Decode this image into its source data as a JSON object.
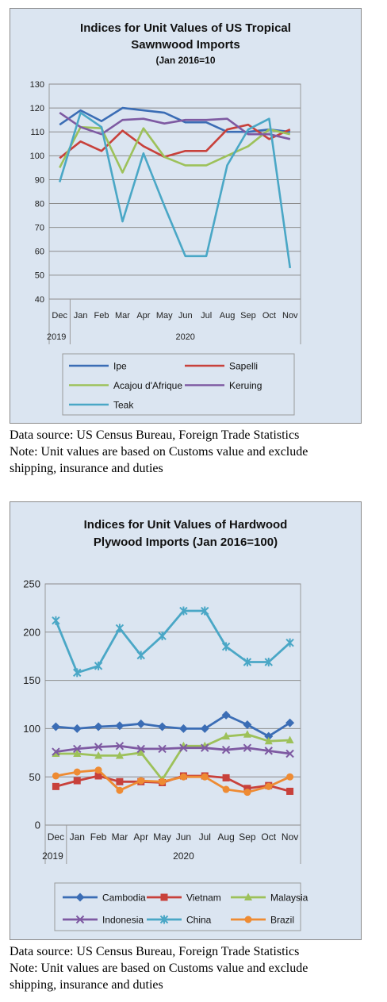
{
  "chart_data": [
    {
      "type": "line",
      "title": "Indices for Unit Values of US Tropical",
      "title_line2": "Sawnwood Imports",
      "subtitle": "(Jan 2016=10",
      "categories": [
        "Dec",
        "Jan",
        "Feb",
        "Mar",
        "Apr",
        "May",
        "Jun",
        "Jul",
        "Aug",
        "Sep",
        "Oct",
        "Nov"
      ],
      "year_labels": [
        "2019",
        "2020"
      ],
      "ylim": [
        40,
        130
      ],
      "yticks": [
        "40",
        "50",
        "60",
        "70",
        "80",
        "90",
        "100",
        "110",
        "120",
        "130"
      ],
      "grid": true,
      "legend_position": "bottom",
      "series": [
        {
          "name": "Ipe",
          "color": "#3b6db5",
          "marker": "none",
          "values": [
            113,
            119,
            114.5,
            120,
            119,
            118,
            114,
            114,
            110,
            110,
            111,
            110
          ]
        },
        {
          "name": "Sapelli",
          "color": "#c8413b",
          "marker": "none",
          "values": [
            99,
            106,
            102,
            110.5,
            104,
            99.5,
            102,
            102,
            111,
            113,
            107,
            111
          ]
        },
        {
          "name": "Acajou d'Afrique",
          "color": "#9dc15a",
          "marker": "none",
          "values": [
            95,
            112,
            111.5,
            93,
            111.5,
            99.5,
            96,
            96,
            100,
            104,
            111,
            109
          ]
        },
        {
          "name": "Keruing",
          "color": "#7e5aa2",
          "marker": "none",
          "values": [
            118,
            112,
            109,
            115,
            115.5,
            113.5,
            115,
            115,
            115.5,
            109,
            109,
            107
          ]
        },
        {
          "name": "Teak",
          "color": "#4aa7c6",
          "marker": "none",
          "values": [
            89,
            118,
            112,
            72.5,
            101,
            79,
            58,
            58,
            96,
            111,
            115.5,
            53
          ]
        }
      ]
    },
    {
      "type": "line",
      "title": "Indices for Unit Values of Hardwood",
      "title_line2": "Plywood Imports (Jan 2016=100)",
      "categories": [
        "Dec",
        "Jan",
        "Feb",
        "Mar",
        "Apr",
        "May",
        "Jun",
        "Jul",
        "Aug",
        "Sep",
        "Oct",
        "Nov"
      ],
      "year_labels": [
        "2019",
        "2020"
      ],
      "ylim": [
        0,
        250
      ],
      "yticks": [
        "0",
        "50",
        "100",
        "150",
        "200",
        "250"
      ],
      "grid": true,
      "legend_position": "bottom",
      "series": [
        {
          "name": "Cambodia",
          "color": "#3b6db5",
          "marker": "diamond",
          "values": [
            102,
            100,
            102,
            103,
            105,
            102,
            100,
            100,
            114,
            104,
            92,
            106
          ]
        },
        {
          "name": "Vietnam",
          "color": "#c8413b",
          "marker": "square",
          "values": [
            40,
            46,
            51,
            45,
            45,
            44,
            51,
            51,
            49,
            38,
            41,
            35
          ]
        },
        {
          "name": "Malaysia",
          "color": "#9dc15a",
          "marker": "triangle",
          "values": [
            74,
            74,
            72,
            72,
            75,
            47,
            82,
            82,
            92,
            94,
            87,
            88
          ]
        },
        {
          "name": "Indonesia",
          "color": "#7e5aa2",
          "marker": "x",
          "values": [
            76,
            79,
            81,
            82,
            79,
            79,
            80,
            80,
            78,
            80,
            77,
            74
          ]
        },
        {
          "name": "China",
          "color": "#4aa7c6",
          "marker": "star",
          "values": [
            212,
            158,
            165,
            204,
            176,
            196,
            222,
            222,
            185,
            169,
            169,
            189
          ]
        },
        {
          "name": "Brazil",
          "color": "#ee8b33",
          "marker": "circle",
          "values": [
            51,
            55,
            57,
            36,
            46,
            45,
            50,
            50,
            37,
            34,
            40,
            50
          ]
        }
      ]
    }
  ],
  "notes": [
    {
      "line1": "Data source: US Census Bureau, Foreign Trade Statistics",
      "line2": "Note: Unit values are based on Customs value and exclude",
      "line3": "shipping, insurance and duties"
    },
    {
      "line1": "Data source: US Census Bureau, Foreign Trade Statistics",
      "line2": "Note: Unit values are based on Customs value and exclude",
      "line3": "shipping, insurance and duties"
    }
  ]
}
